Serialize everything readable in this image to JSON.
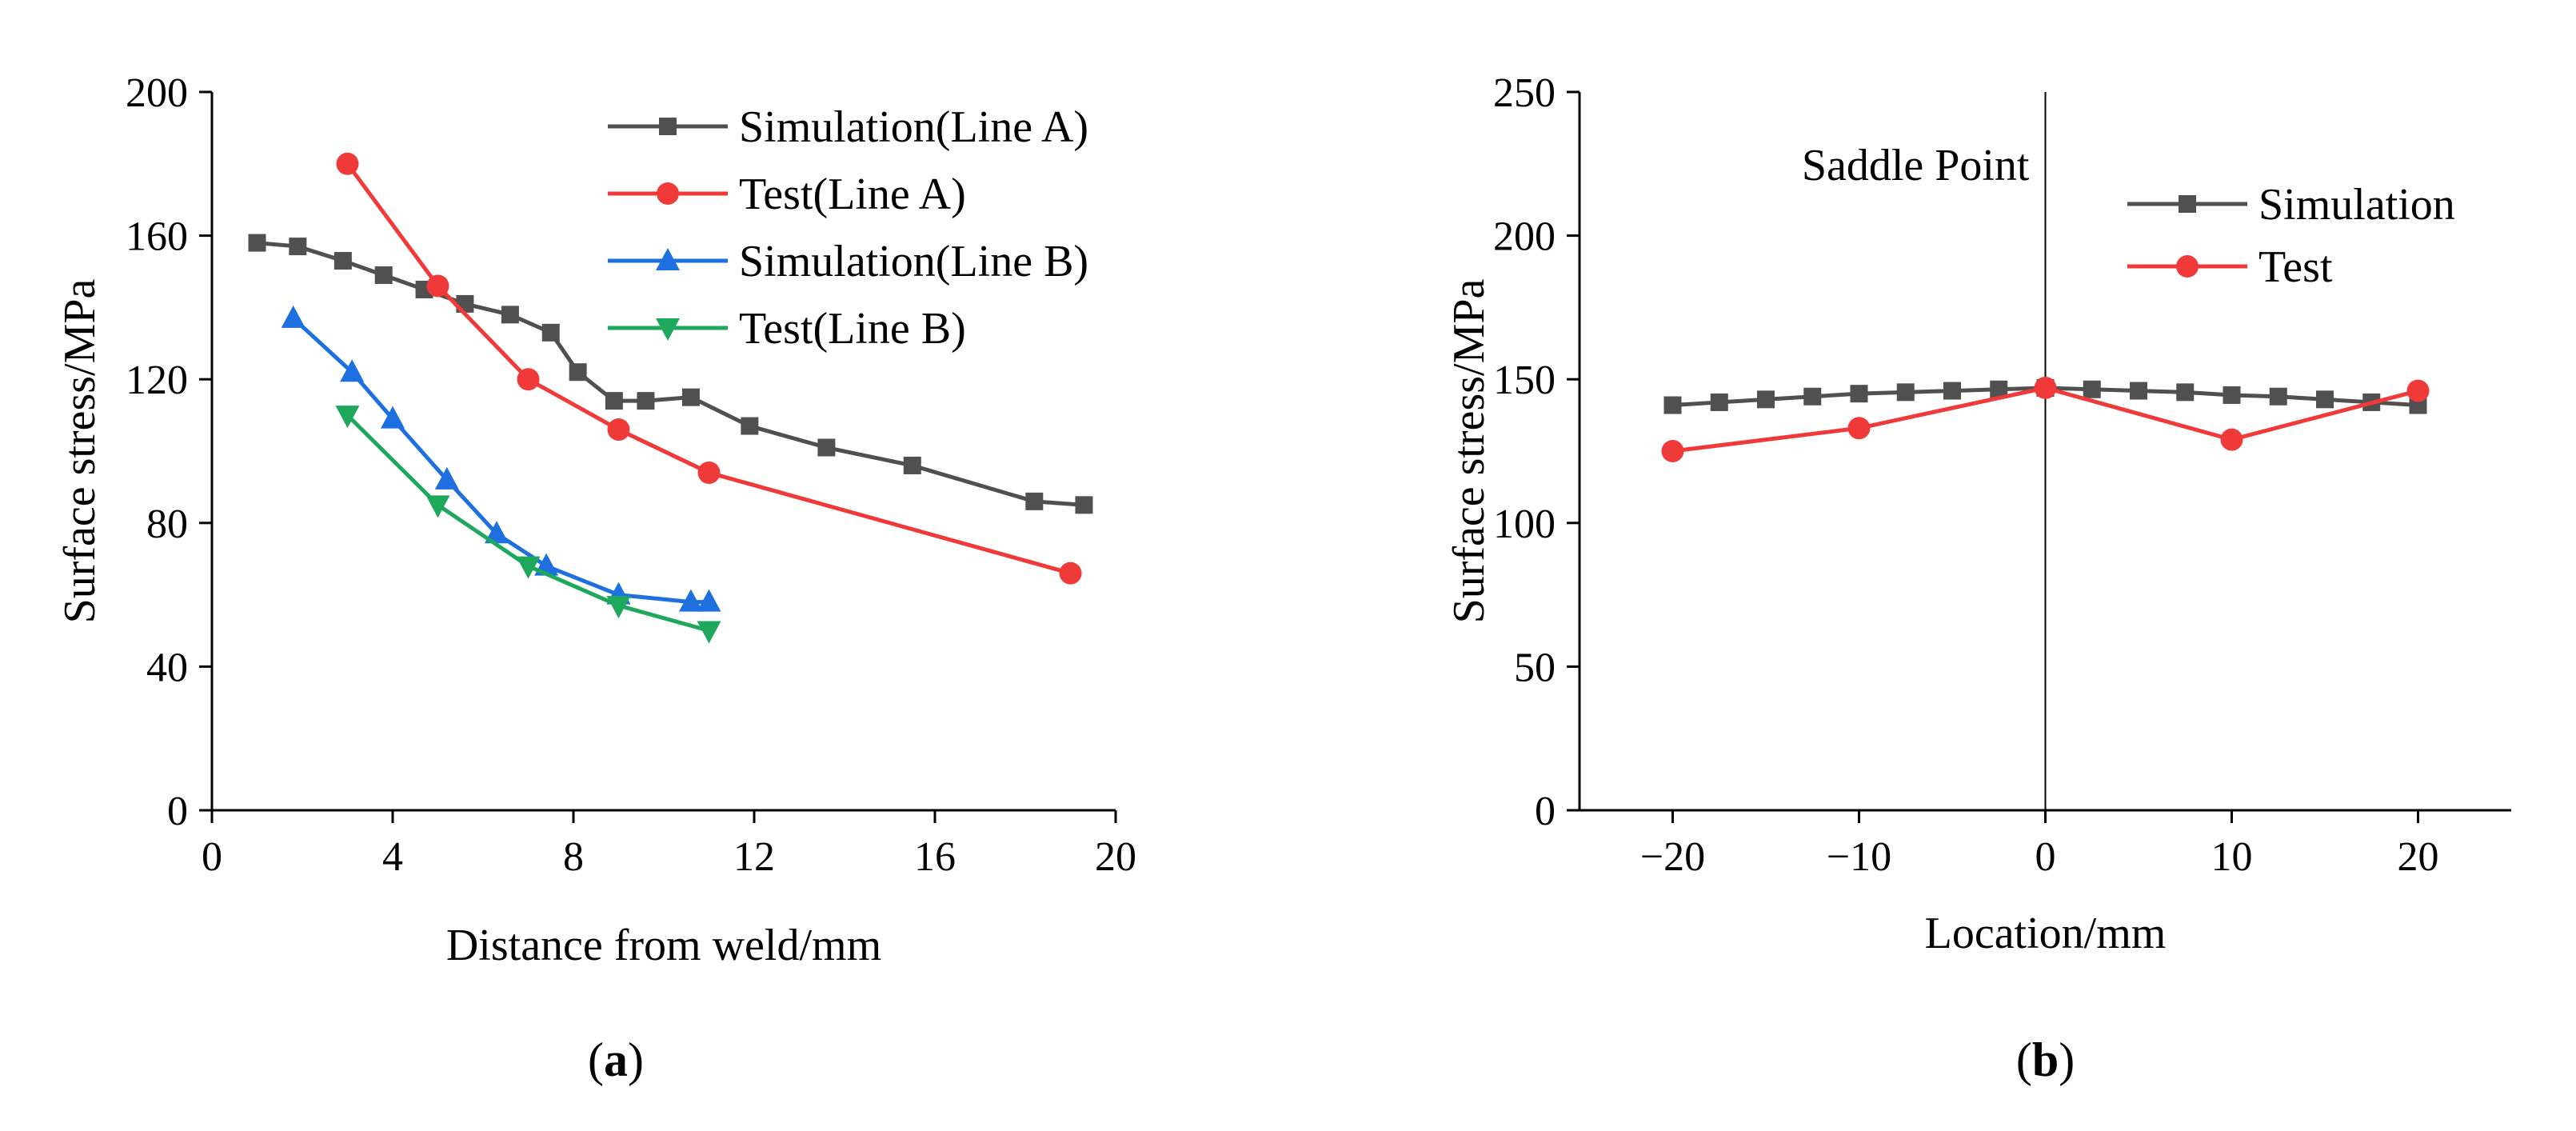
{
  "chart_data": [
    {
      "type": "line",
      "panel_label_open": "(",
      "panel_label_letter": "a",
      "panel_label_close": ")",
      "xlabel": "Distance from weld/mm",
      "ylabel": "Surface stress/MPa",
      "xlim": [
        0,
        20
      ],
      "ylim": [
        0,
        200
      ],
      "xticks": [
        0,
        4,
        8,
        12,
        16,
        20
      ],
      "xtick_labels": [
        "0",
        "4",
        "8",
        "12",
        "16",
        "20"
      ],
      "yticks": [
        0,
        40,
        80,
        120,
        160,
        200
      ],
      "ytick_labels": [
        "0",
        "40",
        "80",
        "120",
        "160",
        "200"
      ],
      "legend_position": "top-right",
      "series": [
        {
          "name": "Simulation(Line A)",
          "color": "#505050",
          "marker": "square",
          "x": [
            1.0,
            1.9,
            2.9,
            3.8,
            4.7,
            5.6,
            6.6,
            7.5,
            8.1,
            8.9,
            9.6,
            10.6,
            11.9,
            13.6,
            15.5,
            18.2,
            19.3
          ],
          "y": [
            158,
            157,
            153,
            149,
            145,
            141,
            138,
            133,
            122,
            114,
            114,
            115,
            107,
            101,
            96,
            86,
            85
          ]
        },
        {
          "name": "Test(Line A)",
          "color": "#f03a3a",
          "marker": "circle",
          "x": [
            3.0,
            5.0,
            7.0,
            9.0,
            11.0,
            19.0
          ],
          "y": [
            180,
            146,
            120,
            106,
            94,
            66
          ]
        },
        {
          "name": "Simulation(Line B)",
          "color": "#1e6fe0",
          "marker": "triangle-up",
          "x": [
            1.8,
            3.1,
            4.0,
            5.2,
            6.3,
            7.4,
            9.0,
            10.6,
            11.0
          ],
          "y": [
            137,
            122,
            109,
            92,
            77,
            68,
            60,
            58,
            58
          ]
        },
        {
          "name": "Test(Line B)",
          "color": "#1ea85c",
          "marker": "triangle-down",
          "x": [
            3.0,
            5.0,
            7.0,
            9.0,
            11.0
          ],
          "y": [
            110,
            85,
            68,
            57,
            50
          ]
        }
      ]
    },
    {
      "type": "line",
      "panel_label_open": "(",
      "panel_label_letter": "b",
      "panel_label_close": ")",
      "xlabel": "Location/mm",
      "ylabel": "Surface stress/MPa",
      "xlim": [
        -25,
        25
      ],
      "ylim": [
        0,
        250
      ],
      "xticks": [
        -20,
        -10,
        0,
        10,
        20
      ],
      "xtick_labels": [
        "−20",
        "−10",
        "0",
        "10",
        "20"
      ],
      "yticks": [
        0,
        50,
        100,
        150,
        200,
        250
      ],
      "ytick_labels": [
        "0",
        "50",
        "100",
        "150",
        "200",
        "250"
      ],
      "legend_position": "top-right",
      "annotation": {
        "text": "Saddle Point",
        "x": 0
      },
      "series": [
        {
          "name": "Simulation",
          "color": "#505050",
          "marker": "square",
          "x": [
            -20,
            -17.5,
            -15,
            -12.5,
            -10,
            -7.5,
            -5,
            -2.5,
            0,
            2.5,
            5,
            7.5,
            10,
            12.5,
            15,
            17.5,
            20
          ],
          "y": [
            141,
            142,
            143,
            144,
            145,
            145.5,
            146,
            146.5,
            147,
            146.5,
            146,
            145.5,
            144.5,
            144,
            143,
            142,
            141
          ]
        },
        {
          "name": "Test",
          "color": "#f03a3a",
          "marker": "circle",
          "x": [
            -20,
            -10,
            0,
            10,
            20
          ],
          "y": [
            125,
            133,
            147,
            129,
            146
          ]
        }
      ]
    }
  ]
}
